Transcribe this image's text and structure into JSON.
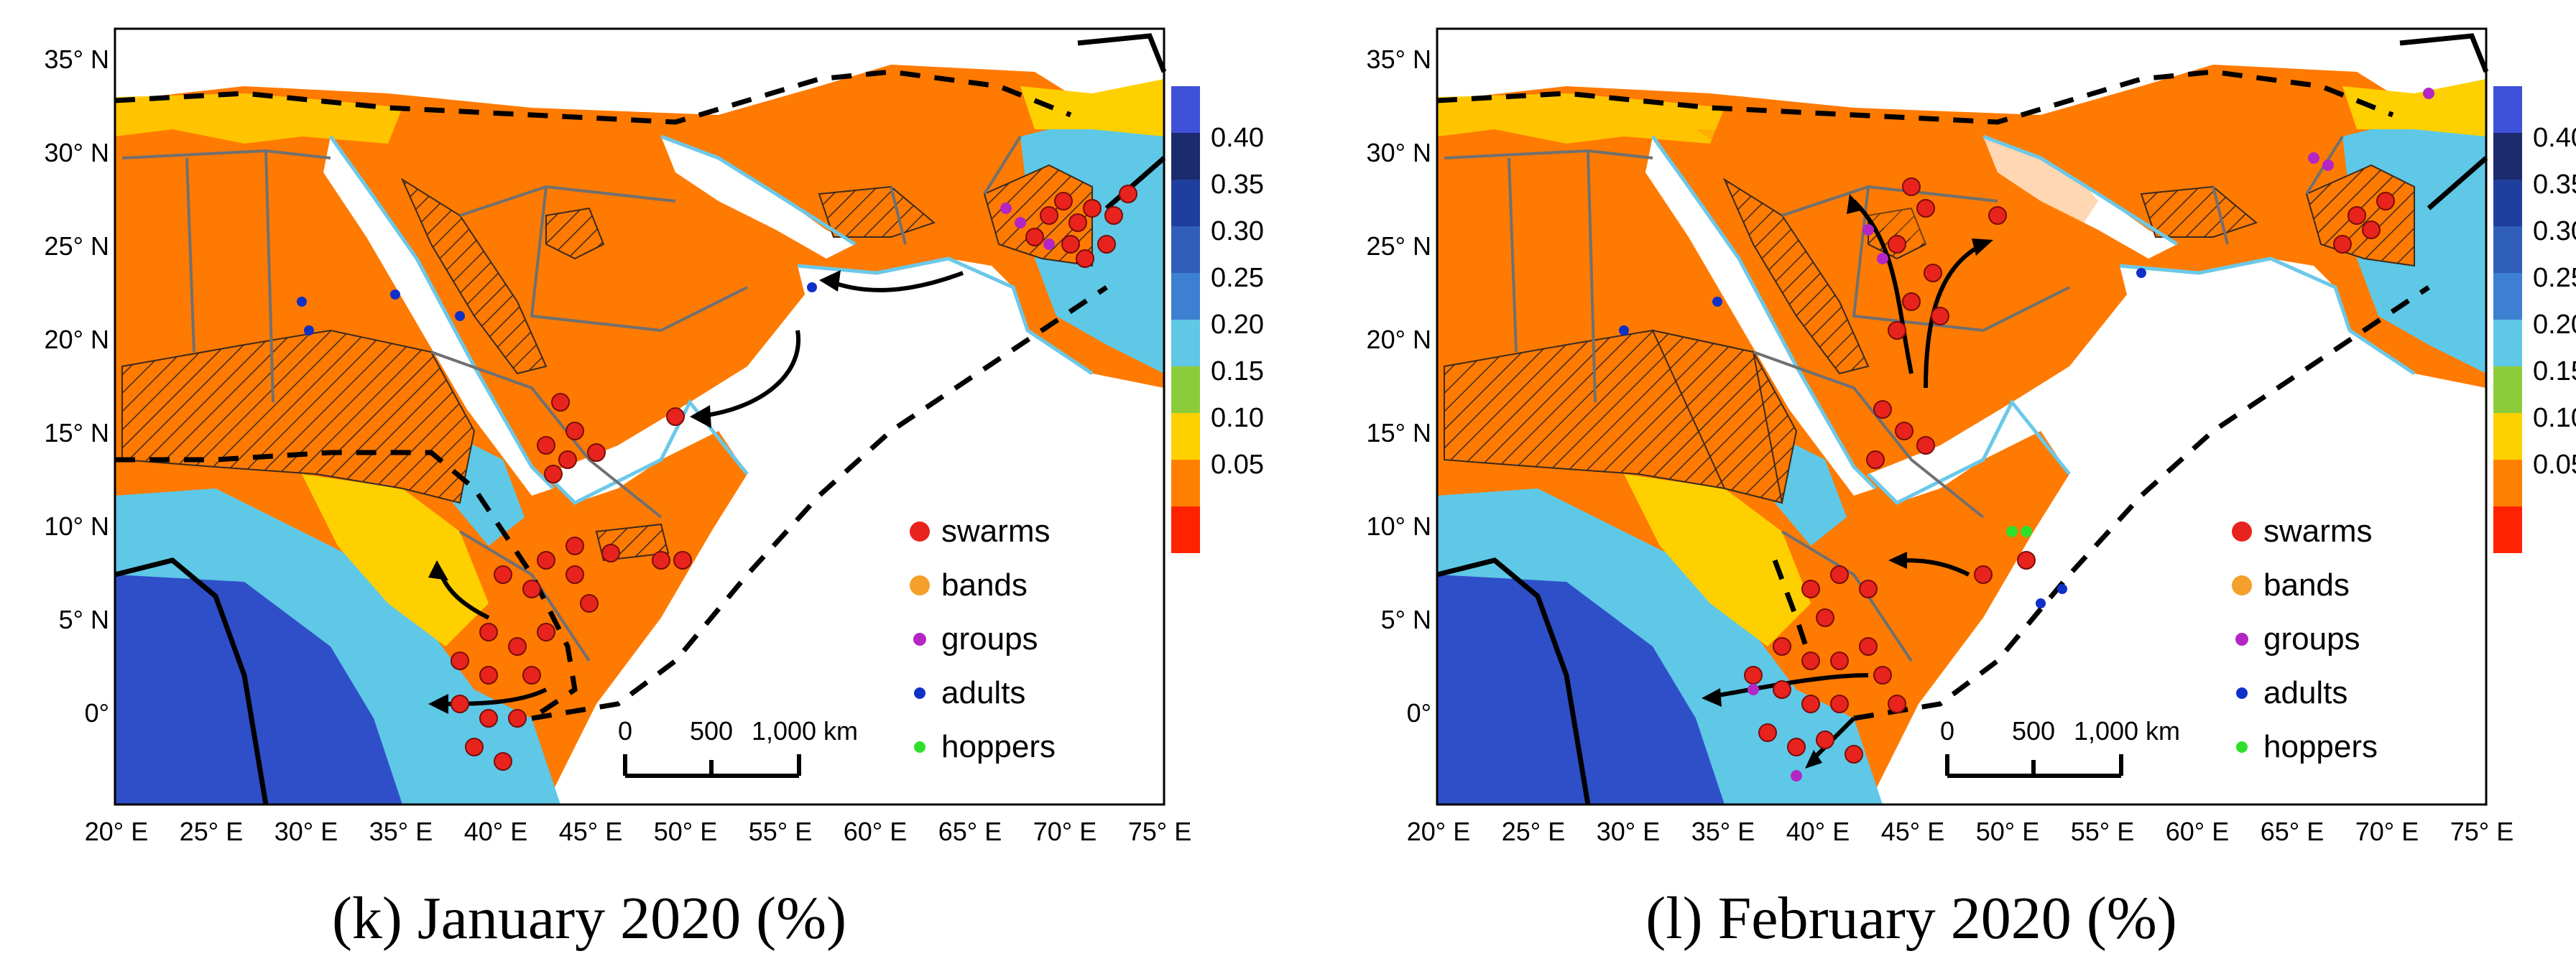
{
  "colorbar": {
    "labels": [
      "0.40",
      "0.35",
      "0.30",
      "0.25",
      "0.20",
      "0.15",
      "0.10",
      "0.05"
    ],
    "colors": [
      "#3f51d8",
      "#1c2a6e",
      "#1f3f9e",
      "#3d7fd0",
      "#5ec8e6",
      "#8ccc3a",
      "#ffd000",
      "#ff8000",
      "#ff2200"
    ]
  },
  "axis": {
    "x_ticks": [
      "20° E",
      "25° E",
      "30° E",
      "35° E",
      "40° E",
      "45° E",
      "50° E",
      "55° E",
      "60° E",
      "65° E",
      "70° E",
      "75° E"
    ],
    "y_ticks": [
      "35° N",
      "30° N",
      "25° N",
      "20° N",
      "15° N",
      "10° N",
      "5° N",
      "0°"
    ]
  },
  "legend": {
    "items": [
      {
        "label": "swarms",
        "color": "#e8231d"
      },
      {
        "label": "bands",
        "color": "#f4a02a"
      },
      {
        "label": "groups",
        "color": "#b326c4"
      },
      {
        "label": "adults",
        "color": "#1030c8"
      },
      {
        "label": "hoppers",
        "color": "#2fe02a"
      }
    ]
  },
  "scalebar": {
    "ticks": [
      "0",
      "500",
      "1,000 km"
    ]
  },
  "panels": [
    {
      "id": "k",
      "caption": "(k) January 2020 (%)"
    },
    {
      "id": "l",
      "caption": "(l) February 2020 (%)"
    }
  ],
  "colors": {
    "low": "#ff7a00",
    "mid": "#ffd000",
    "high": "#5ec8e6",
    "veryhigh": "#2f4fc8",
    "coast": "#6cc8e8",
    "border": "#707070",
    "swarm": "#e8231d"
  }
}
